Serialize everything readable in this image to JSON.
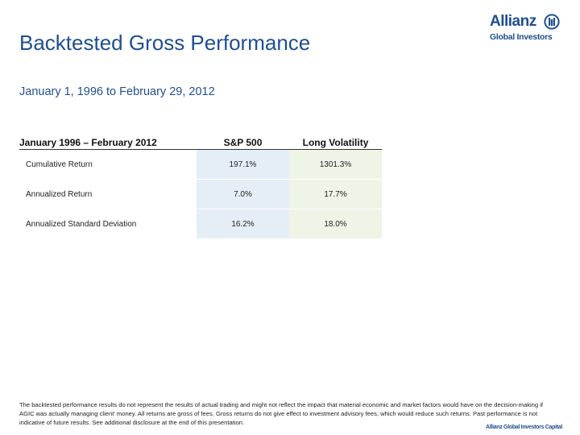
{
  "slide": {
    "title": "Backtested Gross Performance",
    "subtitle": "January 1, 1996 to February 29, 2012"
  },
  "logo": {
    "brand": "Allianz",
    "sub": "Global Investors",
    "icon": "allianz-eagle-icon"
  },
  "table": {
    "headers": [
      "January 1996 – February 2012",
      "S&P 500",
      "Long Volatility"
    ],
    "rows": [
      {
        "label": "Cumulative Return",
        "sp500": "197.1%",
        "long_vol": "1301.3%"
      },
      {
        "label": "Annualized Return",
        "sp500": "7.0%",
        "long_vol": "17.7%"
      },
      {
        "label": "Annualized Standard Deviation",
        "sp500": "16.2%",
        "long_vol": "18.0%"
      }
    ],
    "colors": {
      "sp500_fill": "#e5eef6",
      "long_vol_fill": "#eef4e6",
      "title_blue": "#1f4e91"
    }
  },
  "disclaimer": "The backtested performance results do not represent the results of actual trading and might not reflect the impact that material economic and market factors would have on the decision-making if AGIC was actually managing client' money. All returns are gross of fees. Gross returns do not give effect to investment advisory fees, which would reduce such returns. Past performance is not indicative of future results. See additional disclosure at the end of this presentation.",
  "footer": {
    "brand": "Allianz Global Investors Capital"
  }
}
